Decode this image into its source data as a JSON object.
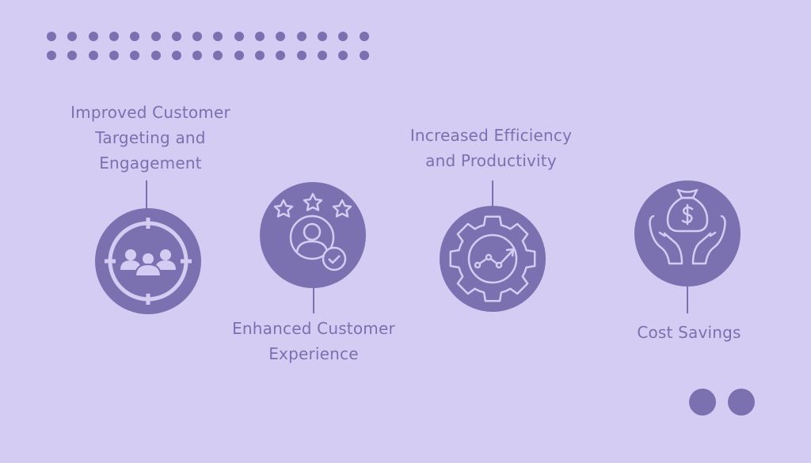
{
  "colors": {
    "background": "#d5ccf3",
    "accent": "#7b70b0",
    "icon_stroke": "#d5ccf3"
  },
  "items": [
    {
      "label": "Improved Customer Targeting and Engagement",
      "lines": [
        "Improved Customer",
        "Targeting and",
        "Engagement"
      ],
      "icon": "target-audience-icon"
    },
    {
      "label": "Enhanced Customer Experience",
      "lines": [
        "Enhanced Customer",
        "Experience"
      ],
      "icon": "customer-rating-icon"
    },
    {
      "label": "Increased Efficiency and Productivity",
      "lines": [
        "Increased Efficiency",
        "and Productivity"
      ],
      "icon": "gear-growth-icon"
    },
    {
      "label": "Cost Savings",
      "lines": [
        "Cost Savings"
      ],
      "icon": "money-bag-hands-icon"
    }
  ]
}
